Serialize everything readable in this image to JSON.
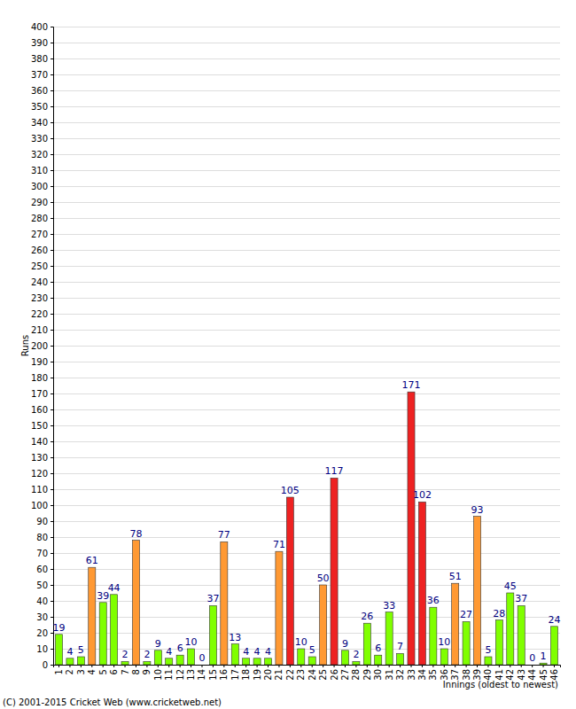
{
  "chart_data": {
    "type": "bar",
    "x_label": "Innings (oldest to newest)",
    "y_label": "Runs",
    "annotations": [
      "(C) 2001-2015 Cricket Web (www.cricketweb.net)"
    ],
    "categories": [
      "1",
      "2",
      "3",
      "4",
      "5",
      "6",
      "7",
      "8",
      "9",
      "10",
      "11",
      "12",
      "13",
      "14",
      "15",
      "16",
      "17",
      "18",
      "19",
      "20",
      "21",
      "22",
      "23",
      "24",
      "25",
      "26",
      "27",
      "28",
      "29",
      "30",
      "31",
      "32",
      "33",
      "34",
      "35",
      "36",
      "37",
      "38",
      "39",
      "40",
      "41",
      "42",
      "43",
      "44",
      "45",
      "46"
    ],
    "values": [
      19,
      4,
      5,
      61,
      39,
      44,
      2,
      78,
      2,
      9,
      4,
      6,
      10,
      0,
      37,
      77,
      13,
      4,
      4,
      4,
      71,
      105,
      10,
      5,
      50,
      117,
      9,
      2,
      26,
      6,
      33,
      7,
      171,
      102,
      36,
      10,
      51,
      27,
      93,
      5,
      28,
      45,
      37,
      0,
      1,
      24
    ],
    "colors": [
      "#80ff00",
      "#80ff00",
      "#80ff00",
      "#ff9933",
      "#80ff00",
      "#80ff00",
      "#80ff00",
      "#ff9933",
      "#80ff00",
      "#80ff00",
      "#80ff00",
      "#80ff00",
      "#80ff00",
      "#80ff00",
      "#80ff00",
      "#ff9933",
      "#80ff00",
      "#80ff00",
      "#80ff00",
      "#80ff00",
      "#ff9933",
      "#ee2222",
      "#80ff00",
      "#80ff00",
      "#ff9933",
      "#ee2222",
      "#80ff00",
      "#80ff00",
      "#80ff00",
      "#80ff00",
      "#80ff00",
      "#80ff00",
      "#ee2222",
      "#ee2222",
      "#80ff00",
      "#80ff00",
      "#ff9933",
      "#80ff00",
      "#ff9933",
      "#80ff00",
      "#80ff00",
      "#80ff00",
      "#80ff00",
      "#80ff00",
      "#80ff00",
      "#80ff00"
    ],
    "ylim": [
      0,
      400
    ],
    "yticks": [
      0,
      10,
      20,
      30,
      40,
      50,
      60,
      70,
      80,
      90,
      100,
      110,
      120,
      130,
      140,
      150,
      160,
      170,
      180,
      190,
      200,
      210,
      220,
      230,
      240,
      250,
      260,
      270,
      280,
      290,
      300,
      310,
      320,
      330,
      340,
      350,
      360,
      370,
      380,
      390,
      400
    ],
    "grid": true,
    "data_labels": true
  }
}
